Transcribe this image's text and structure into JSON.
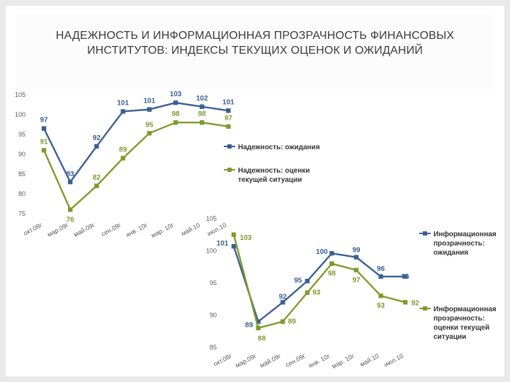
{
  "title": "НАДЕЖНОСТЬ И ИНФОРМАЦИОННАЯ ПРОЗРАЧНОСТЬ ФИНАНСОВЫХ ИНСТИТУТОВ: ИНДЕКСЫ ТЕКУЩИХ ОЦЕНОК И ОЖИДАНИЙ",
  "colors": {
    "blue": "#3a5f94",
    "green": "#7f9a2c"
  },
  "chart_data": [
    {
      "type": "line",
      "categories": [
        "окт.08г",
        "мар.09г",
        "май.09г",
        "сен.09г",
        "янв. 10г",
        "мар. 10г",
        "май.10",
        "июл.10"
      ],
      "ylim": [
        75,
        105
      ],
      "yticks": [
        75,
        80,
        85,
        90,
        95,
        100,
        105
      ],
      "grid": false,
      "legend": "right",
      "series": [
        {
          "name": "Надежность: ожидания",
          "color": "#3a5f94",
          "marker": "square",
          "values": [
            96.5,
            83,
            92,
            100.8,
            101.3,
            103,
            102,
            101
          ],
          "labels": [
            "97",
            "83",
            "92",
            "101",
            "101",
            "103",
            "102",
            "101"
          ]
        },
        {
          "name": "Надежность: оценки текущей ситуации",
          "color": "#7f9a2c",
          "marker": "square",
          "values": [
            91,
            76,
            82,
            89,
            95.3,
            98,
            98,
            97
          ],
          "labels": [
            "91",
            "76",
            "82",
            "89",
            "95",
            "98",
            "98",
            "97"
          ]
        }
      ]
    },
    {
      "type": "line",
      "categories": [
        "окт.08г",
        "мар.09г",
        "май.09г",
        "сен.09г",
        "янв. 10г",
        "мар. 10г",
        "май.10",
        "июл.10"
      ],
      "ylim": [
        85,
        105
      ],
      "yticks": [
        85,
        90,
        95,
        100,
        105
      ],
      "grid": false,
      "legend": "right",
      "series": [
        {
          "name": "Информационная прозрачность: ожидания",
          "color": "#3a5f94",
          "marker": "square",
          "values": [
            100.7,
            89,
            92,
            95.3,
            99.6,
            99,
            96,
            96
          ],
          "labels": [
            "101",
            "89",
            "92",
            "95",
            "100",
            "99",
            "96",
            "96"
          ]
        },
        {
          "name": "Информационная прозрачность: оценки текущей ситуации",
          "color": "#7f9a2c",
          "marker": "square",
          "values": [
            102.5,
            88,
            89,
            93.5,
            98,
            97,
            93,
            92
          ],
          "labels": [
            "103",
            "88",
            "89",
            "93",
            "98",
            "97",
            "93",
            "92"
          ]
        }
      ]
    }
  ]
}
